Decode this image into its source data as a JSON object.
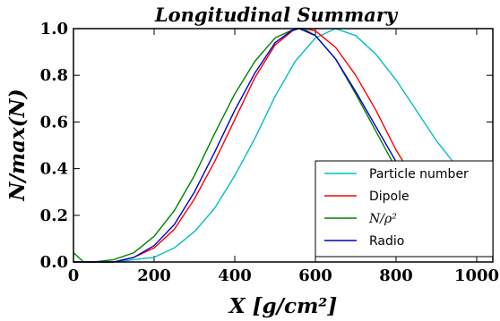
{
  "chart_data": {
    "type": "line",
    "title": "Longitudinal Summary",
    "xlabel": "X [g/cm²]",
    "ylabel": "N/max(N)",
    "xlim": [
      0,
      1040
    ],
    "ylim": [
      0,
      1.0
    ],
    "x_ticks": [
      0,
      200,
      400,
      600,
      800,
      1000
    ],
    "y_ticks": [
      0.0,
      0.2,
      0.4,
      0.6,
      0.8,
      1.0
    ],
    "x_tick_labels": [
      "0",
      "200",
      "400",
      "600",
      "800",
      "1000"
    ],
    "y_tick_labels": [
      "0.0",
      "0.2",
      "0.4",
      "0.6",
      "0.8",
      "1.0"
    ],
    "grid": false,
    "legend_position": "bottom-right",
    "series": [
      {
        "name": "Particle number",
        "color": "#00bfbf",
        "x": [
          0,
          100,
          200,
          250,
          300,
          350,
          400,
          450,
          500,
          550,
          600,
          650,
          700,
          750,
          800,
          850,
          900,
          950,
          1000,
          1040
        ],
        "y": [
          0.0,
          0.0,
          0.02,
          0.06,
          0.13,
          0.23,
          0.37,
          0.53,
          0.71,
          0.86,
          0.96,
          1.0,
          0.97,
          0.89,
          0.78,
          0.65,
          0.52,
          0.41,
          0.31,
          0.25
        ]
      },
      {
        "name": "Dipole",
        "color": "#ff0000",
        "x": [
          0,
          100,
          150,
          200,
          250,
          300,
          350,
          400,
          450,
          500,
          550,
          575,
          600,
          650,
          700,
          750,
          800,
          850,
          900,
          950,
          1000,
          1040
        ],
        "y": [
          0.0,
          0.0,
          0.02,
          0.06,
          0.14,
          0.27,
          0.43,
          0.61,
          0.79,
          0.93,
          1.0,
          1.0,
          0.99,
          0.92,
          0.8,
          0.65,
          0.48,
          0.34,
          0.22,
          0.14,
          0.08,
          0.04
        ]
      },
      {
        "name": "N/ρ²",
        "color": "#008000",
        "x": [
          0,
          25,
          50,
          100,
          150,
          200,
          250,
          300,
          350,
          400,
          450,
          500,
          550,
          570,
          600,
          650,
          700,
          750,
          800,
          850,
          900,
          950,
          1000,
          1040
        ],
        "y": [
          0.04,
          0.0,
          0.0,
          0.01,
          0.04,
          0.11,
          0.22,
          0.37,
          0.55,
          0.72,
          0.86,
          0.96,
          1.0,
          1.0,
          0.97,
          0.87,
          0.72,
          0.56,
          0.4,
          0.27,
          0.17,
          0.11,
          0.1,
          0.06
        ]
      },
      {
        "name": "Radio",
        "color": "#0000cc",
        "x": [
          0,
          100,
          150,
          200,
          250,
          300,
          350,
          400,
          450,
          500,
          540,
          560,
          600,
          650,
          700,
          750,
          800,
          850,
          900,
          950,
          1000,
          1040
        ],
        "y": [
          0.0,
          0.0,
          0.02,
          0.07,
          0.16,
          0.3,
          0.47,
          0.65,
          0.81,
          0.94,
          0.99,
          1.0,
          0.97,
          0.87,
          0.73,
          0.58,
          0.43,
          0.3,
          0.2,
          0.13,
          0.1,
          0.03
        ]
      }
    ]
  },
  "legend": {
    "items": [
      {
        "label": "Particle number",
        "color": "#00bfbf"
      },
      {
        "label": "Dipole",
        "color": "#ff0000"
      },
      {
        "label": "N/ρ²",
        "color": "#008000",
        "is_math": true
      },
      {
        "label": "Radio",
        "color": "#0000cc"
      }
    ]
  }
}
